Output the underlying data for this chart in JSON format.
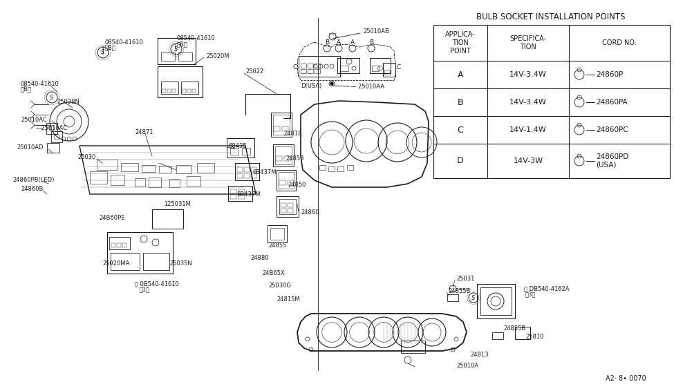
{
  "bg_color": "#ffffff",
  "line_color": "#1a1a1a",
  "table_title": "BULB SOCKET INSTALLATION POINTS",
  "table_headers": [
    "APPLICA-\nTION\nPOINT",
    "SPECIFICA-\nTION",
    "CORD NO."
  ],
  "table_rows": [
    [
      "A",
      "14V-3.4W",
      "24860P"
    ],
    [
      "B",
      "14V-3.4W",
      "24860PA"
    ],
    [
      "C",
      "14V-1.4W",
      "24860PC"
    ],
    [
      "D",
      "14V-3W",
      "24860PD\n(USA)"
    ]
  ],
  "footer_text": "A2· 8• 0070"
}
